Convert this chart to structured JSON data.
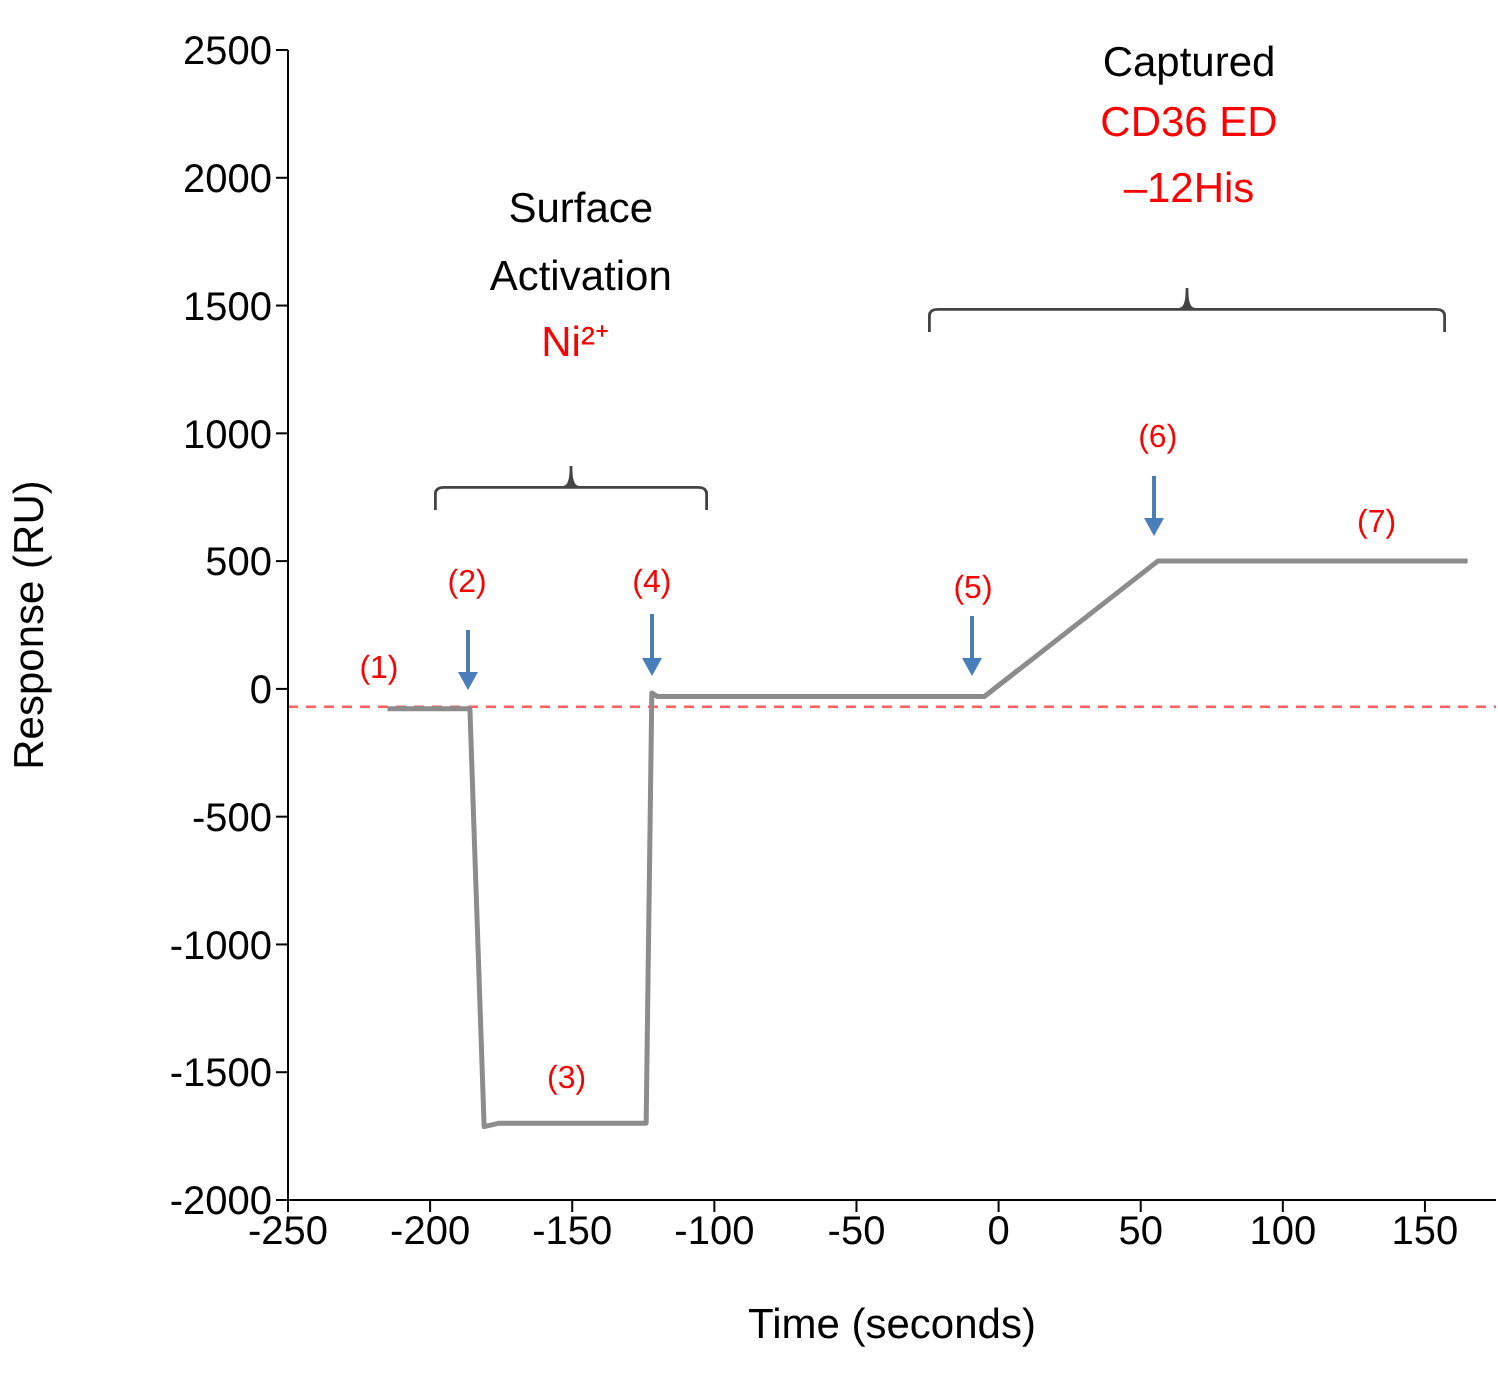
{
  "chart_data": {
    "type": "line",
    "xlabel": "Time (seconds)",
    "ylabel": "Response (RU)",
    "xlim": [
      -250,
      175
    ],
    "xticks": [
      -250,
      -200,
      -150,
      -100,
      -50,
      0,
      50,
      100,
      150
    ],
    "ylim": [
      -2000,
      2500
    ],
    "yticks": [
      -2000,
      -1500,
      -1000,
      -500,
      0,
      500,
      1000,
      1500,
      2000,
      2500
    ],
    "series": [
      {
        "color": "#8c8c8c",
        "x": [
          -215,
          -186,
          -181,
          -176,
          -124,
          -122,
          -120,
          -5,
          56,
          165
        ],
        "values": [
          -78,
          -78,
          -1713,
          -1700,
          -1700,
          -16,
          -30,
          -30,
          500,
          500
        ]
      }
    ],
    "ref_lines": [
      {
        "axis": "y",
        "value": -70,
        "label": null,
        "color": "#ff6060",
        "line_style": "dashed"
      }
    ],
    "annotations": [
      "(1)",
      "(2)",
      "(3)",
      "(4)",
      "(5)",
      "(6)",
      "(7)",
      "Surface",
      "Activation",
      "Ni²⁺",
      "Captured",
      "CD36 ED",
      "–12His"
    ]
  }
}
